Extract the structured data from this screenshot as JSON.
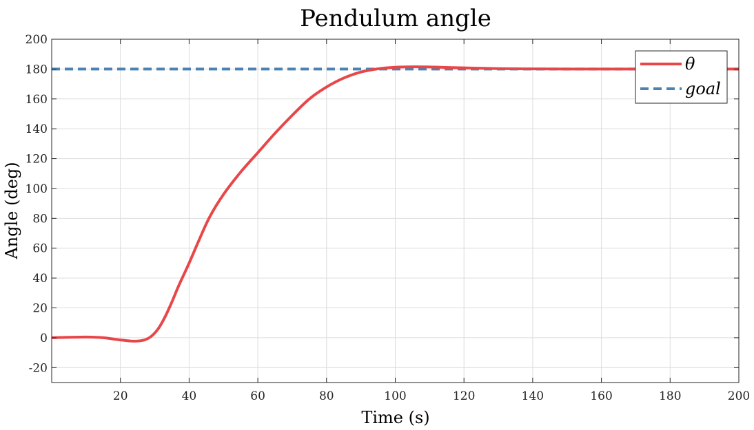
{
  "chart_data": {
    "type": "line",
    "title": "Pendulum angle",
    "xlabel": "Time (s)",
    "ylabel": "Angle (deg)",
    "xlim": [
      0,
      200
    ],
    "ylim": [
      -30,
      200
    ],
    "xticks": [
      20,
      40,
      60,
      80,
      100,
      120,
      140,
      160,
      180,
      200
    ],
    "yticks": [
      -20,
      0,
      20,
      40,
      60,
      80,
      100,
      120,
      140,
      160,
      180,
      200
    ],
    "grid": true,
    "legend_position": "top-right",
    "series": [
      {
        "name": "θ",
        "color": "#e8474a",
        "style": "solid",
        "x": [
          0,
          5,
          10,
          15,
          20,
          23,
          25,
          27,
          29,
          31,
          33,
          35,
          37,
          40,
          43,
          46,
          50,
          55,
          60,
          65,
          70,
          75,
          80,
          85,
          90,
          95,
          100,
          105,
          110,
          120,
          130,
          140,
          150,
          160,
          170,
          180,
          190,
          200
        ],
        "y": [
          0,
          0.3,
          0.5,
          0,
          -1.5,
          -2.2,
          -2.2,
          -1.5,
          1,
          6,
          14,
          24,
          35,
          50,
          66,
          81,
          96,
          111,
          124,
          137,
          149,
          160,
          168,
          174,
          178,
          180.2,
          181.2,
          181.5,
          181.4,
          180.8,
          180.3,
          180.1,
          180.0,
          180.0,
          180.0,
          180.0,
          180.0,
          180.0
        ]
      },
      {
        "name": "goal",
        "color": "#4a83b3",
        "style": "dashed",
        "x": [
          0,
          200
        ],
        "y": [
          180,
          180
        ]
      }
    ]
  }
}
